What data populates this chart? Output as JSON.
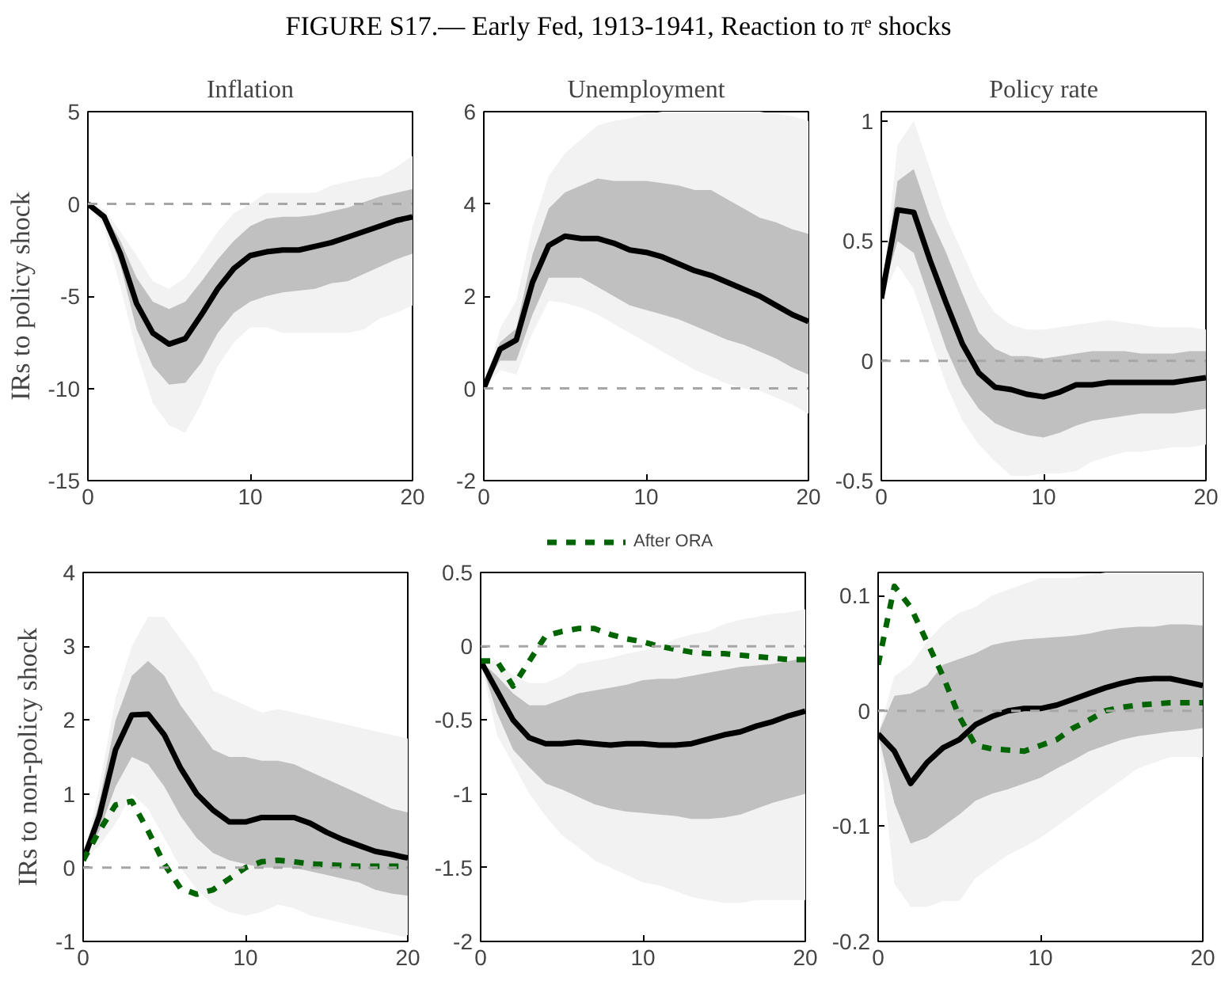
{
  "chart_data": [
    {
      "type": "line",
      "title": "Inflation",
      "ylabel": "IRs to policy shock",
      "annotations": [
        "FIGURE S17.— Early Fed, 1913-1941, Reaction to πᵉ shocks"
      ],
      "x": [
        0,
        1,
        2,
        3,
        4,
        5,
        6,
        7,
        8,
        9,
        10,
        11,
        12,
        13,
        14,
        15,
        16,
        17,
        18,
        19,
        20
      ],
      "xlim": [
        0,
        20
      ],
      "xticks": [
        0,
        10,
        20
      ],
      "ylim": [
        -15,
        5
      ],
      "yticks": [
        -15,
        -10,
        -5,
        0,
        5
      ],
      "ref_lines": [
        {
          "axis": "y",
          "value": 0,
          "color": "#a6a6a6",
          "line_style": "dashed"
        }
      ],
      "series": [
        {
          "color": "#f2f2f2",
          "values": [
            null,
            null,
            null,
            null,
            null,
            null,
            null,
            null,
            null,
            null,
            null,
            null,
            null,
            null,
            null,
            null,
            null,
            null,
            null,
            null,
            null
          ],
          "lower": [
            0,
            -1.3,
            -4.5,
            -8,
            -10.8,
            -12,
            -12.4,
            -10.8,
            -8.8,
            -7.5,
            -6.7,
            -6.7,
            -7,
            -7,
            -7,
            -7,
            -7,
            -6.8,
            -6.2,
            -5.9,
            -5.5
          ],
          "upper": [
            0,
            -0.3,
            -1.5,
            -2.8,
            -4.2,
            -4.6,
            -4,
            -2.8,
            -1.5,
            -0.5,
            0,
            0.6,
            0.6,
            0.6,
            0.6,
            1,
            1.2,
            1.4,
            1.5,
            2,
            2.6
          ]
        },
        {
          "color": "#000000",
          "values": [
            0,
            -0.7,
            -2.7,
            -5.4,
            -7.0,
            -7.6,
            -7.3,
            -6.0,
            -4.6,
            -3.5,
            -2.8,
            -2.6,
            -2.5,
            -2.5,
            -2.3,
            -2.1,
            -1.8,
            -1.5,
            -1.2,
            -0.9,
            -0.7
          ],
          "lower": [
            0,
            -1,
            -3.3,
            -6.8,
            -8.8,
            -9.8,
            -9.7,
            -8.6,
            -7,
            -5.9,
            -5.3,
            -5,
            -4.8,
            -4.7,
            -4.6,
            -4.3,
            -4.2,
            -3.8,
            -3.4,
            -3,
            -2.7
          ],
          "upper": [
            0,
            -0.5,
            -2,
            -4,
            -5.3,
            -5.7,
            -5.3,
            -4.2,
            -3,
            -2,
            -1.2,
            -0.8,
            -0.7,
            -0.7,
            -0.6,
            -0.4,
            -0.2,
            0.1,
            0.4,
            0.6,
            0.8
          ]
        }
      ]
    },
    {
      "type": "line",
      "title": "Unemployment",
      "x": [
        0,
        1,
        2,
        3,
        4,
        5,
        6,
        7,
        8,
        9,
        10,
        11,
        12,
        13,
        14,
        15,
        16,
        17,
        18,
        19,
        20
      ],
      "xlim": [
        0,
        20
      ],
      "xticks": [
        0,
        10,
        20
      ],
      "ylim": [
        -2,
        6
      ],
      "yticks": [
        -2,
        0,
        2,
        4,
        6
      ],
      "ref_lines": [
        {
          "axis": "y",
          "value": 0,
          "color": "#a6a6a6",
          "line_style": "dashed"
        }
      ],
      "series": [
        {
          "color": "#f2f2f2",
          "values": [
            null,
            null,
            null,
            null,
            null,
            null,
            null,
            null,
            null,
            null,
            null,
            null,
            null,
            null,
            null,
            null,
            null,
            null,
            null,
            null,
            null
          ],
          "lower": [
            0,
            0.4,
            0.3,
            1.2,
            1.9,
            1.85,
            1.75,
            1.6,
            1.4,
            1.2,
            1.0,
            0.8,
            0.6,
            0.4,
            0.25,
            0.1,
            0,
            -0.05,
            -0.2,
            -0.35,
            -0.55
          ],
          "upper": [
            0,
            1.3,
            1.9,
            3.5,
            4.6,
            5.1,
            5.4,
            5.7,
            5.8,
            5.85,
            5.95,
            6.0,
            6.0,
            6.0,
            6.0,
            6.0,
            6.0,
            6.0,
            5.95,
            5.9,
            5.8
          ]
        },
        {
          "color": "#000000",
          "values": [
            0,
            0.85,
            1.05,
            2.3,
            3.1,
            3.3,
            3.25,
            3.25,
            3.15,
            3.0,
            2.95,
            2.85,
            2.7,
            2.55,
            2.45,
            2.3,
            2.15,
            2.0,
            1.8,
            1.6,
            1.45
          ],
          "lower": [
            0,
            0.6,
            0.6,
            1.6,
            2.4,
            2.4,
            2.4,
            2.2,
            2.0,
            1.8,
            1.7,
            1.6,
            1.5,
            1.35,
            1.2,
            1.05,
            0.95,
            0.8,
            0.65,
            0.45,
            0.3
          ],
          "upper": [
            0,
            1.0,
            1.3,
            2.9,
            3.9,
            4.25,
            4.4,
            4.55,
            4.5,
            4.5,
            4.5,
            4.45,
            4.4,
            4.3,
            4.3,
            4.1,
            3.9,
            3.7,
            3.6,
            3.45,
            3.35
          ]
        }
      ]
    },
    {
      "type": "line",
      "title": "Policy rate",
      "x": [
        0,
        1,
        2,
        3,
        4,
        5,
        6,
        7,
        8,
        9,
        10,
        11,
        12,
        13,
        14,
        15,
        16,
        17,
        18,
        19,
        20
      ],
      "xlim": [
        0,
        20
      ],
      "xticks": [
        0,
        10,
        20
      ],
      "ylim": [
        -0.5,
        1.04
      ],
      "yticks": [
        -0.5,
        0,
        0.5,
        1
      ],
      "ref_lines": [
        {
          "axis": "y",
          "value": 0,
          "color": "#a6a6a6",
          "line_style": "dashed"
        }
      ],
      "series": [
        {
          "color": "#f2f2f2",
          "values": [
            null,
            null,
            null,
            null,
            null,
            null,
            null,
            null,
            null,
            null,
            null,
            null,
            null,
            null,
            null,
            null,
            null,
            null,
            null,
            null,
            null
          ],
          "lower": [
            0.26,
            0.4,
            0.3,
            0.1,
            -0.1,
            -0.25,
            -0.35,
            -0.42,
            -0.48,
            -0.48,
            -0.47,
            -0.47,
            -0.46,
            -0.42,
            -0.4,
            -0.38,
            -0.38,
            -0.37,
            -0.36,
            -0.36,
            -0.35
          ],
          "upper": [
            0.26,
            0.9,
            1.0,
            0.8,
            0.6,
            0.45,
            0.3,
            0.2,
            0.15,
            0.13,
            0.13,
            0.14,
            0.15,
            0.16,
            0.17,
            0.16,
            0.15,
            0.14,
            0.14,
            0.14,
            0.13
          ]
        },
        {
          "color": "#000000",
          "values": [
            0.26,
            0.63,
            0.62,
            0.42,
            0.24,
            0.07,
            -0.05,
            -0.11,
            -0.12,
            -0.14,
            -0.15,
            -0.13,
            -0.1,
            -0.1,
            -0.09,
            -0.09,
            -0.09,
            -0.09,
            -0.09,
            -0.08,
            -0.07
          ],
          "lower": [
            0.26,
            0.5,
            0.45,
            0.25,
            0.05,
            -0.1,
            -0.2,
            -0.26,
            -0.29,
            -0.31,
            -0.32,
            -0.3,
            -0.27,
            -0.25,
            -0.24,
            -0.23,
            -0.22,
            -0.22,
            -0.22,
            -0.21,
            -0.2
          ],
          "upper": [
            0.26,
            0.75,
            0.8,
            0.6,
            0.45,
            0.28,
            0.12,
            0.05,
            0.02,
            0.02,
            0.01,
            0.02,
            0.03,
            0.04,
            0.04,
            0.04,
            0.03,
            0.03,
            0.03,
            0.04,
            0.04
          ]
        }
      ]
    },
    {
      "type": "line",
      "ylabel": "IRs to non-policy shock",
      "x": [
        0,
        1,
        2,
        3,
        4,
        5,
        6,
        7,
        8,
        9,
        10,
        11,
        12,
        13,
        14,
        15,
        16,
        17,
        18,
        19,
        20
      ],
      "xlim": [
        0,
        20
      ],
      "xticks": [
        0,
        10,
        20
      ],
      "ylim": [
        -1,
        4
      ],
      "yticks": [
        -1,
        0,
        1,
        2,
        3,
        4
      ],
      "ref_lines": [
        {
          "axis": "y",
          "value": 0,
          "color": "#a6a6a6",
          "line_style": "dashed"
        }
      ],
      "series": [
        {
          "color": "#f2f2f2",
          "values": [
            null,
            null,
            null,
            null,
            null,
            null,
            null,
            null,
            null,
            null,
            null,
            null,
            null,
            null,
            null,
            null,
            null,
            null,
            null,
            null,
            null
          ],
          "lower": [
            0.1,
            0.3,
            0.6,
            1.0,
            0.8,
            0.4,
            0.0,
            -0.3,
            -0.5,
            -0.6,
            -0.65,
            -0.6,
            -0.5,
            -0.55,
            -0.65,
            -0.7,
            -0.75,
            -0.8,
            -0.85,
            -0.9,
            -0.95
          ],
          "upper": [
            0.1,
            1.1,
            2.3,
            3.0,
            3.4,
            3.4,
            3.1,
            2.8,
            2.4,
            2.3,
            2.2,
            2.1,
            2.15,
            2.1,
            2.05,
            2.0,
            1.95,
            1.9,
            1.85,
            1.8,
            1.75
          ]
        },
        {
          "color": "#000000",
          "values": [
            0.1,
            0.7,
            1.6,
            2.07,
            2.08,
            1.8,
            1.35,
            1.0,
            0.78,
            0.62,
            0.62,
            0.68,
            0.68,
            0.68,
            0.6,
            0.48,
            0.38,
            0.3,
            0.22,
            0.18,
            0.13
          ],
          "lower": [
            0.1,
            0.5,
            1.1,
            1.5,
            1.4,
            1.1,
            0.7,
            0.4,
            0.2,
            0.1,
            0.05,
            0.0,
            0.0,
            0.0,
            -0.05,
            -0.1,
            -0.15,
            -0.2,
            -0.3,
            -0.35,
            -0.38
          ],
          "upper": [
            0.1,
            0.9,
            2.0,
            2.6,
            2.8,
            2.6,
            2.2,
            1.9,
            1.6,
            1.5,
            1.5,
            1.45,
            1.45,
            1.4,
            1.3,
            1.2,
            1.1,
            1.0,
            0.9,
            0.8,
            0.75
          ]
        },
        {
          "color": "#006400",
          "line_style": "dashed",
          "values": [
            0.1,
            0.5,
            0.85,
            0.9,
            0.5,
            0.05,
            -0.28,
            -0.36,
            -0.3,
            -0.15,
            0,
            0.08,
            0.1,
            0.08,
            0.05,
            0.04,
            0.03,
            0.02,
            0.02,
            0.02,
            0.02
          ]
        }
      ]
    },
    {
      "type": "line",
      "legend": "top",
      "x": [
        0,
        1,
        2,
        3,
        4,
        5,
        6,
        7,
        8,
        9,
        10,
        11,
        12,
        13,
        14,
        15,
        16,
        17,
        18,
        19,
        20
      ],
      "xlim": [
        0,
        20
      ],
      "xticks": [
        0,
        10,
        20
      ],
      "ylim": [
        -2,
        0.5
      ],
      "yticks": [
        -2,
        -1.5,
        -1,
        -0.5,
        0,
        0.5
      ],
      "ref_lines": [
        {
          "axis": "y",
          "value": 0,
          "color": "#a6a6a6",
          "line_style": "dashed"
        }
      ],
      "series": [
        {
          "color": "#f2f2f2",
          "values": [
            null,
            null,
            null,
            null,
            null,
            null,
            null,
            null,
            null,
            null,
            null,
            null,
            null,
            null,
            null,
            null,
            null,
            null,
            null,
            null,
            null
          ],
          "lower": [
            -0.1,
            -0.6,
            -0.8,
            -1.0,
            -1.15,
            -1.28,
            -1.36,
            -1.45,
            -1.5,
            -1.55,
            -1.6,
            -1.62,
            -1.66,
            -1.7,
            -1.72,
            -1.74,
            -1.74,
            -1.72,
            -1.72,
            -1.72,
            -1.72
          ],
          "upper": [
            -0.1,
            -0.1,
            -0.2,
            -0.25,
            -0.25,
            -0.2,
            -0.12,
            -0.1,
            -0.08,
            -0.05,
            -0.03,
            0,
            0.05,
            0.08,
            0.1,
            0.15,
            0.18,
            0.2,
            0.22,
            0.23,
            0.25
          ]
        },
        {
          "color": "#000000",
          "values": [
            -0.1,
            -0.3,
            -0.5,
            -0.62,
            -0.66,
            -0.66,
            -0.65,
            -0.66,
            -0.67,
            -0.66,
            -0.66,
            -0.67,
            -0.67,
            -0.66,
            -0.63,
            -0.6,
            -0.58,
            -0.54,
            -0.51,
            -0.47,
            -0.44
          ],
          "lower": [
            -0.1,
            -0.45,
            -0.7,
            -0.82,
            -0.93,
            -0.97,
            -1.02,
            -1.07,
            -1.1,
            -1.12,
            -1.13,
            -1.14,
            -1.15,
            -1.17,
            -1.17,
            -1.16,
            -1.14,
            -1.1,
            -1.06,
            -1.03,
            -1.0
          ],
          "upper": [
            -0.1,
            -0.2,
            -0.32,
            -0.4,
            -0.4,
            -0.36,
            -0.32,
            -0.3,
            -0.28,
            -0.26,
            -0.23,
            -0.22,
            -0.22,
            -0.2,
            -0.18,
            -0.16,
            -0.14,
            -0.13,
            -0.12,
            -0.1,
            -0.08
          ]
        },
        {
          "name": "After ORA",
          "color": "#006400",
          "line_style": "dashed",
          "values": [
            -0.1,
            -0.1,
            -0.27,
            -0.1,
            0.07,
            0.1,
            0.12,
            0.12,
            0.08,
            0.05,
            0.03,
            0.0,
            -0.02,
            -0.04,
            -0.05,
            -0.05,
            -0.06,
            -0.07,
            -0.08,
            -0.09,
            -0.09
          ]
        }
      ]
    },
    {
      "type": "line",
      "x": [
        0,
        1,
        2,
        3,
        4,
        5,
        6,
        7,
        8,
        9,
        10,
        11,
        12,
        13,
        14,
        15,
        16,
        17,
        18,
        19,
        20
      ],
      "xlim": [
        0,
        20
      ],
      "xticks": [
        0,
        10,
        20
      ],
      "ylim": [
        -0.2,
        0.12
      ],
      "yticks": [
        -0.2,
        -0.1,
        0,
        0.1
      ],
      "ref_lines": [
        {
          "axis": "y",
          "value": 0,
          "color": "#a6a6a6",
          "line_style": "dashed"
        }
      ],
      "series": [
        {
          "color": "#f2f2f2",
          "values": [
            null,
            null,
            null,
            null,
            null,
            null,
            null,
            null,
            null,
            null,
            null,
            null,
            null,
            null,
            null,
            null,
            null,
            null,
            null,
            null,
            null
          ],
          "lower": [
            -0.02,
            -0.15,
            -0.17,
            -0.17,
            -0.165,
            -0.165,
            -0.145,
            -0.135,
            -0.125,
            -0.118,
            -0.11,
            -0.1,
            -0.09,
            -0.08,
            -0.07,
            -0.06,
            -0.05,
            -0.045,
            -0.04,
            -0.04,
            -0.04
          ],
          "upper": [
            -0.02,
            0.03,
            0.04,
            0.06,
            0.075,
            0.085,
            0.09,
            0.1,
            0.105,
            0.11,
            0.115,
            0.115,
            0.115,
            0.118,
            0.12,
            0.12,
            0.12,
            0.12,
            0.12,
            0.12,
            0.12
          ]
        },
        {
          "color": "#000000",
          "values": [
            -0.02,
            -0.035,
            -0.063,
            -0.045,
            -0.032,
            -0.025,
            -0.012,
            -0.005,
            0.0,
            0.002,
            0.002,
            0.005,
            0.01,
            0.015,
            0.02,
            0.024,
            0.027,
            0.028,
            0.028,
            0.025,
            0.022
          ],
          "lower": [
            -0.02,
            -0.08,
            -0.115,
            -0.11,
            -0.1,
            -0.09,
            -0.078,
            -0.072,
            -0.068,
            -0.063,
            -0.058,
            -0.05,
            -0.043,
            -0.035,
            -0.03,
            -0.025,
            -0.022,
            -0.02,
            -0.018,
            -0.017,
            -0.015
          ],
          "upper": [
            -0.02,
            0.013,
            0.015,
            0.022,
            0.04,
            0.045,
            0.05,
            0.057,
            0.06,
            0.062,
            0.063,
            0.064,
            0.065,
            0.067,
            0.07,
            0.072,
            0.073,
            0.073,
            0.075,
            0.075,
            0.074
          ]
        },
        {
          "color": "#006400",
          "line_style": "dashed",
          "values": [
            0.04,
            0.108,
            0.09,
            0.06,
            0.03,
            -0.005,
            -0.03,
            -0.033,
            -0.034,
            -0.035,
            -0.03,
            -0.025,
            -0.015,
            -0.008,
            0.0,
            0.003,
            0.005,
            0.006,
            0.007,
            0.007,
            0.007
          ]
        }
      ]
    }
  ]
}
